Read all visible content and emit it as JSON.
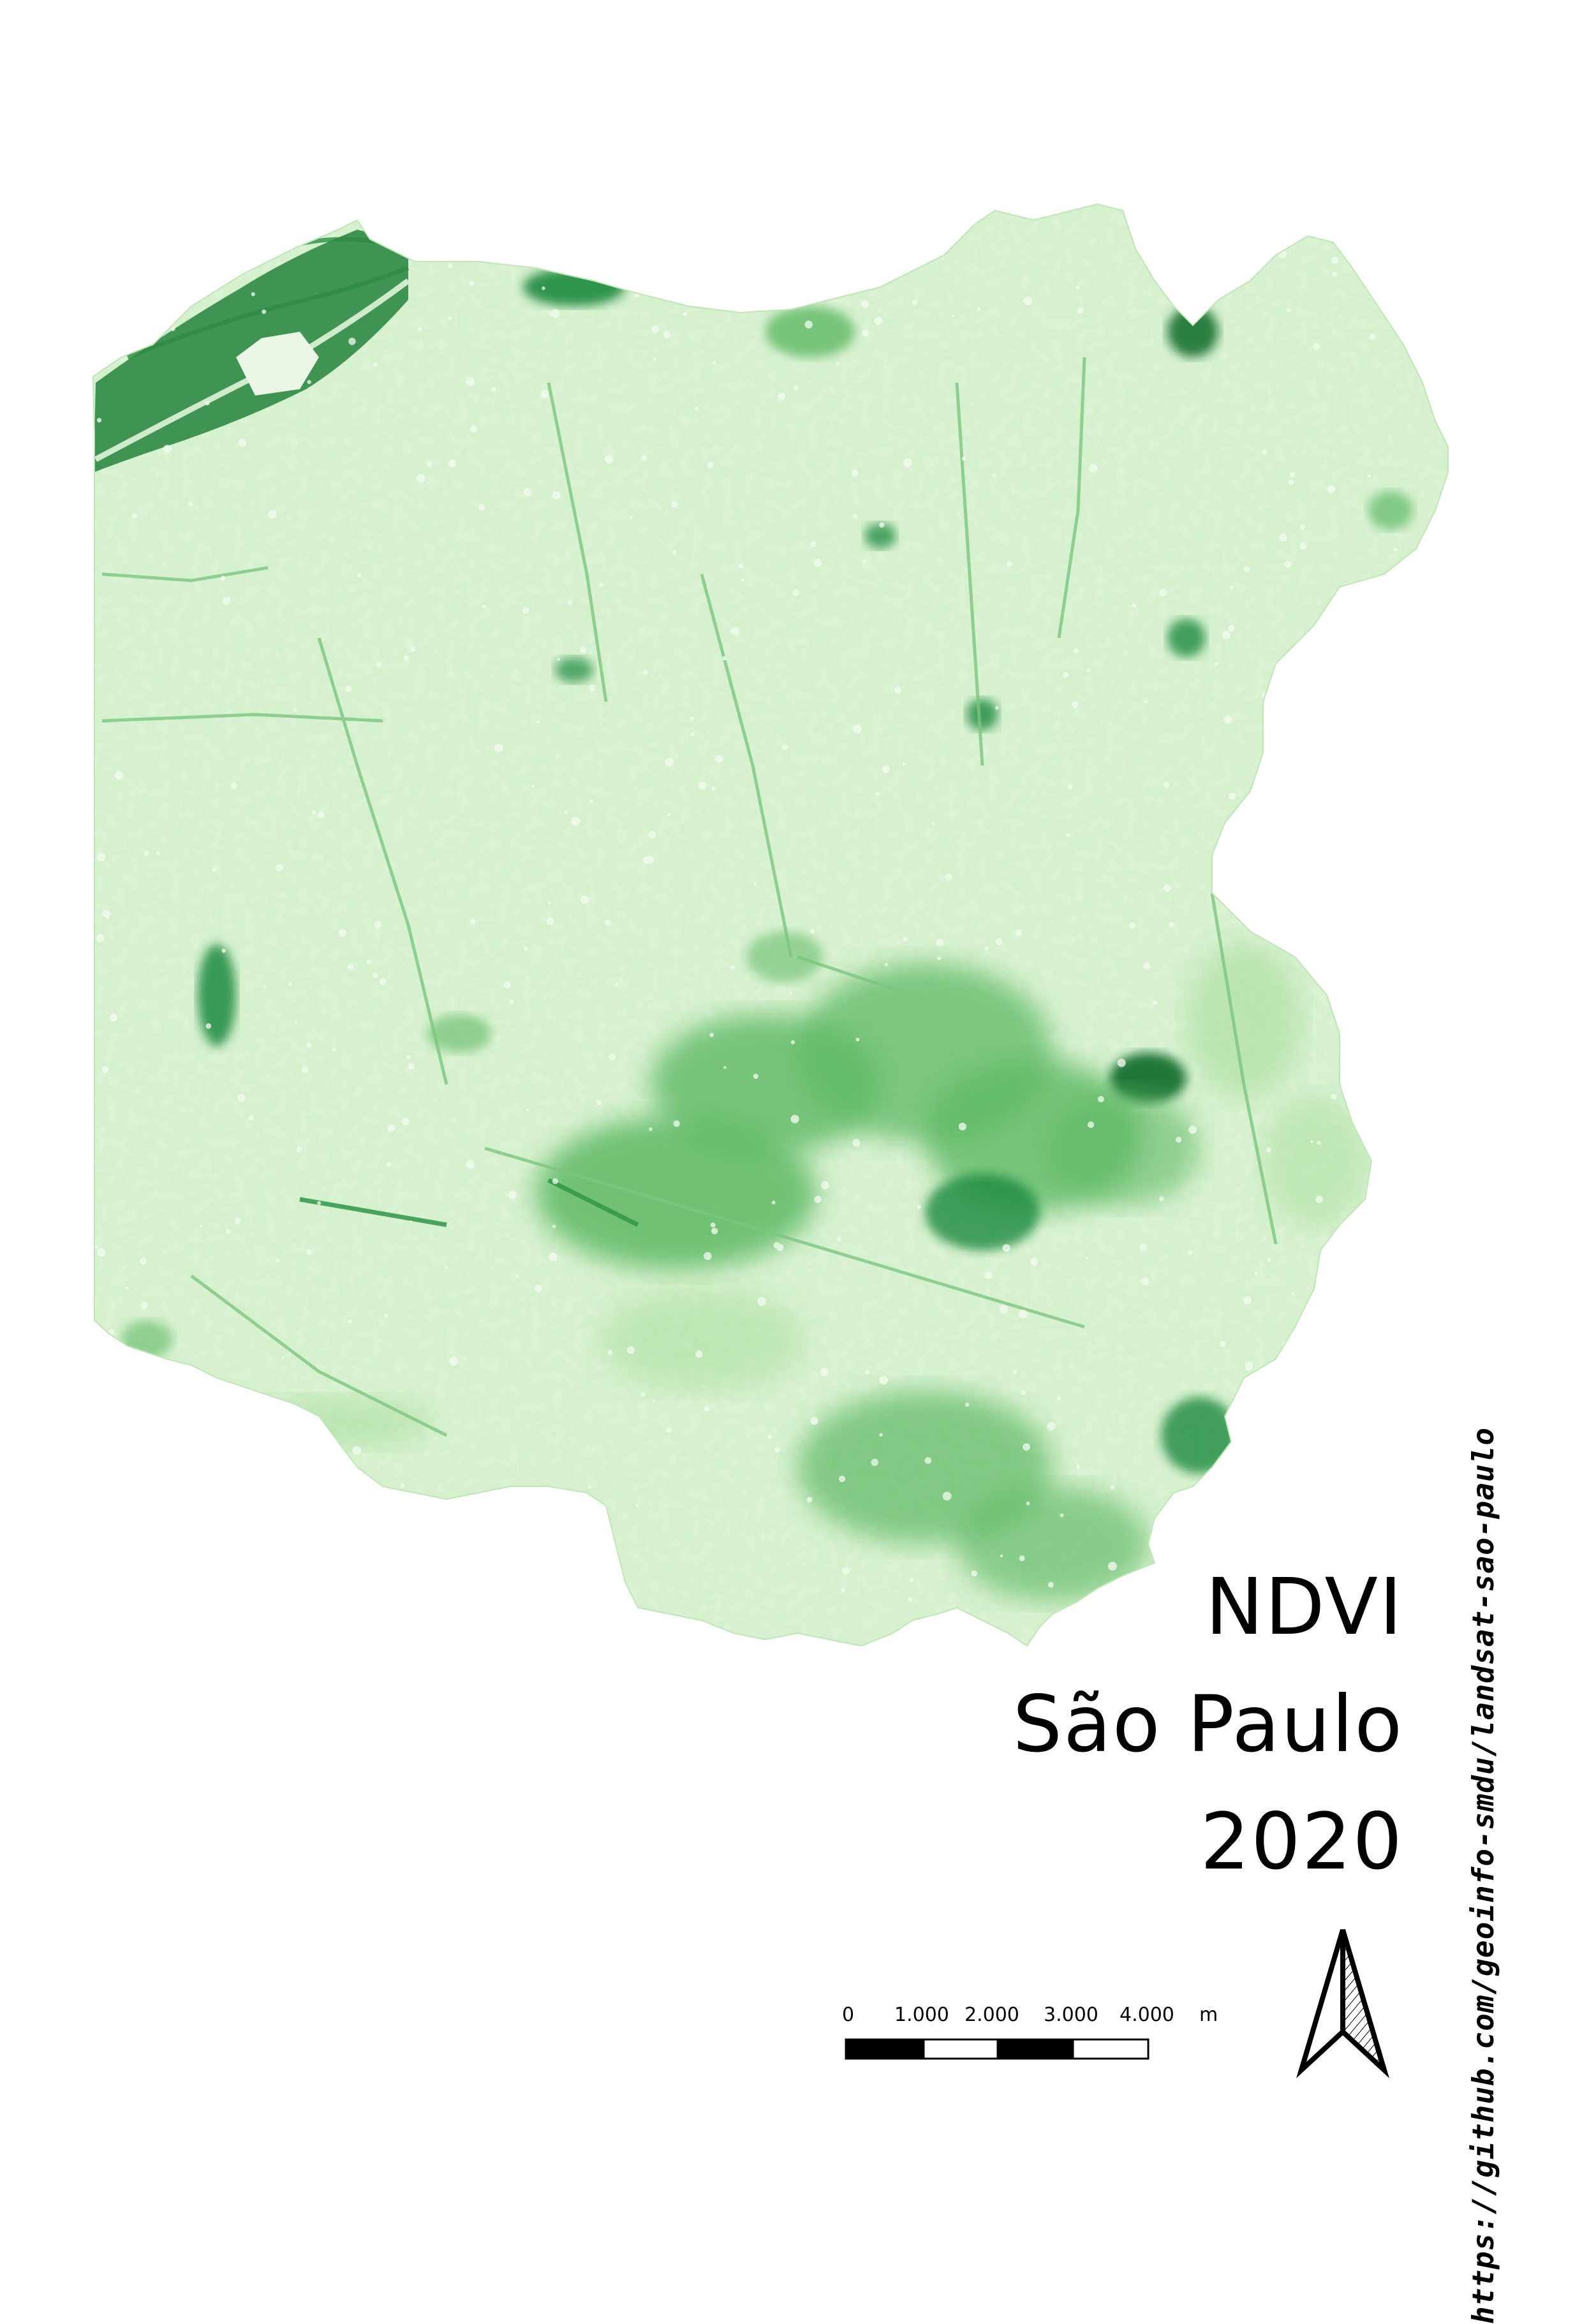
{
  "title": {
    "line1": "NDVI",
    "line2": "São Paulo",
    "line3": "2020"
  },
  "source_url": "https://github.com/geoinfo-smdu/landsat-sao-paulo",
  "scale_bar": {
    "labels": [
      "0",
      "1.000",
      "2.000",
      "3.000",
      "4.000"
    ],
    "unit": "m"
  },
  "north_arrow": {
    "icon": "north-arrow-icon"
  },
  "map": {
    "layer": "NDVI raster",
    "color_ramp": [
      "#f2fbef",
      "#d4f0cc",
      "#a9dd9d",
      "#5fb965",
      "#1f8a3f",
      "#0a6a2a"
    ]
  }
}
